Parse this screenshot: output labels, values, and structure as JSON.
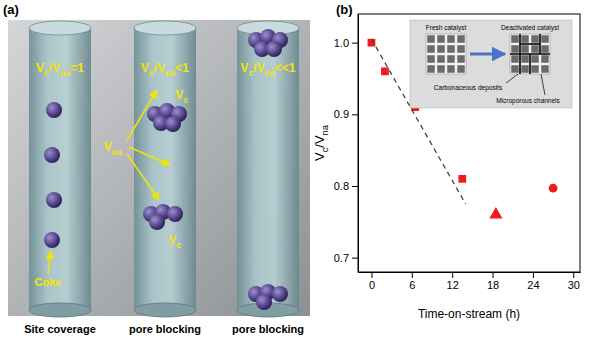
{
  "diagram": {
    "panel_label": "(a)",
    "tubes": [
      {
        "ratio_label": "Vc/Vna=1",
        "caption": "Site coverage"
      },
      {
        "ratio_label": "Vc/Vna<1",
        "caption": "pore blocking"
      },
      {
        "ratio_label": "Vc/Vna<<1",
        "caption": "pore blocking"
      }
    ],
    "annotations": {
      "coke": "Coke",
      "vna": "Vna",
      "vc": [
        "Vc",
        "Vc"
      ]
    }
  },
  "chart_data": {
    "panel_label": "(b)",
    "type": "scatter",
    "xlabel": "Time-on-stream (h)",
    "ylabel": "Vc/Vna",
    "xlim": [
      -2,
      31
    ],
    "ylim": [
      0.68,
      1.04
    ],
    "xticks": [
      0,
      6,
      12,
      18,
      24,
      30
    ],
    "yticks": [
      0.7,
      0.8,
      0.9,
      {
        "value": 1,
        "label": "1.0"
      }
    ],
    "series": [
      {
        "marker": "square",
        "color": "#ee1c1c",
        "x": [
          0,
          2,
          6.5,
          13.5
        ],
        "values": [
          1.0,
          0.96,
          0.91,
          0.81
        ]
      },
      {
        "marker": "triangle",
        "color": "#ee1c1c",
        "x": [
          18.5
        ],
        "values": [
          0.76
        ]
      },
      {
        "marker": "circle",
        "color": "#ee1c1c",
        "x": [
          27
        ],
        "values": [
          0.797
        ]
      },
      {
        "type": "line",
        "line_style": "dashed",
        "color": "#444444",
        "x": [
          0,
          14
        ],
        "values": [
          1.005,
          0.775
        ]
      }
    ],
    "inset": {
      "left_label": "Fresh catalyst",
      "right_label": "Deactivated catalyst",
      "annotations": [
        "Carbonaceous deposits",
        "Microporous channels"
      ]
    }
  }
}
